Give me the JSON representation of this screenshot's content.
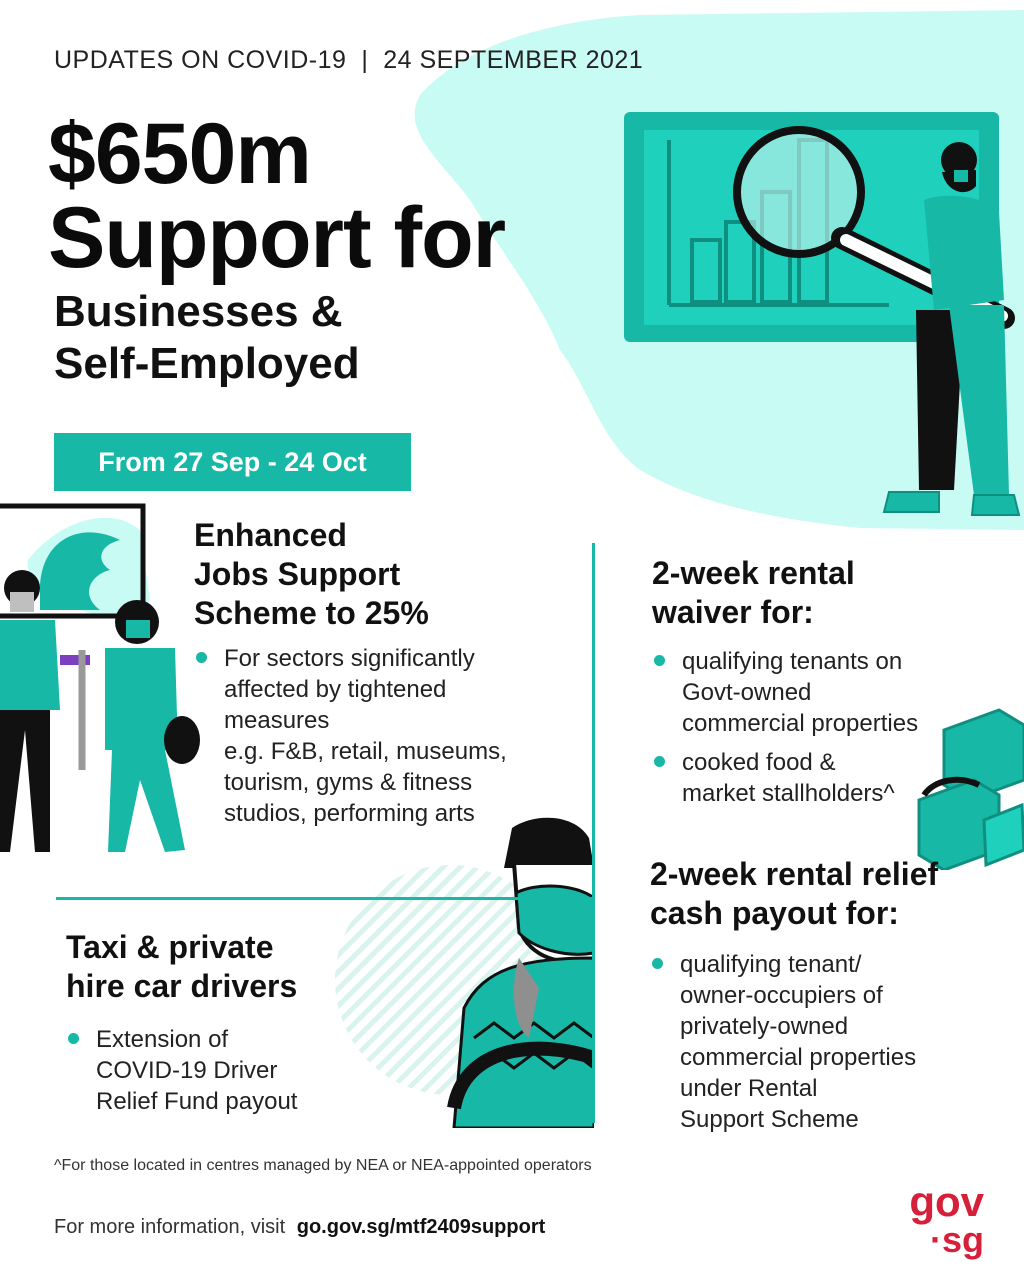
{
  "header": {
    "kicker": "UPDATES ON COVID-19  |  24 SEPTEMBER 2021",
    "title_line1": "$650m",
    "title_line2": "Support for",
    "subtitle_line1": "Businesses &",
    "subtitle_line2": "Self-Employed",
    "date_badge": "From 27 Sep - 24 Oct"
  },
  "sections": {
    "jobs_support": {
      "heading": "Enhanced\nJobs Support\nScheme to 25%",
      "bullets": [
        "For sectors significantly\naffected by tightened\nmeasures\ne.g. F&B, retail, museums,\ntourism, gyms & fitness\nstudios, performing arts"
      ]
    },
    "taxi": {
      "heading": "Taxi & private\nhire car drivers",
      "bullets": [
        "Extension of\nCOVID-19 Driver\nRelief Fund payout"
      ]
    },
    "rental_waiver": {
      "heading": "2-week rental\nwaiver for:",
      "bullets": [
        "qualifying tenants on\nGovt-owned\ncommercial properties",
        "cooked food &\nmarket stallholders^"
      ]
    },
    "rental_relief": {
      "heading": "2-week rental relief\ncash payout for:",
      "bullets": [
        "qualifying tenant/\nowner-occupiers of\nprivately-owned\ncommercial properties\nunder Rental\nSupport Scheme"
      ]
    }
  },
  "footer": {
    "footnote": "^For those located in centres managed by NEA or NEA-appointed operators",
    "more_info": "For more information, visit",
    "url": "go.gov.sg/mtf2409support",
    "logo_top": "gov",
    "logo_bottom": "·sg"
  },
  "colors": {
    "accent": "#17b8a6",
    "accent_light": "#c8fbf3",
    "logo_red": "#d6203a"
  }
}
